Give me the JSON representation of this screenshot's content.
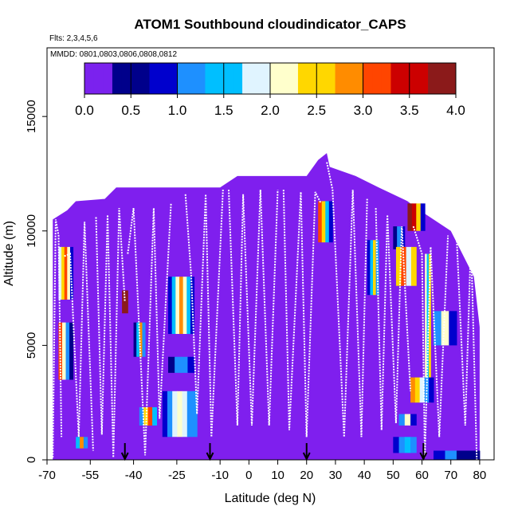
{
  "chart_data": {
    "type": "heatmap",
    "title": "ATOM1 Southbound cloudindicator_CAPS",
    "subtitle_flights": "Flts: 2,3,4,5,6",
    "subtitle_dates": "MMDD: 0801,0803,0806,0808,0812",
    "xlabel": "Latitude (deg N)",
    "ylabel": "Altitude (m)",
    "xlim": [
      -70,
      85
    ],
    "ylim": [
      0,
      18000
    ],
    "x_ticks": [
      -70,
      -55,
      -40,
      -25,
      -10,
      0,
      10,
      20,
      30,
      40,
      50,
      60,
      70,
      80
    ],
    "x_tick_labels": [
      "-70",
      "-55",
      "-40",
      "-25",
      "-10",
      "0",
      "10",
      "20",
      "30",
      "40",
      "50",
      "60",
      "70",
      "80"
    ],
    "y_ticks": [
      0,
      5000,
      10000,
      15000
    ],
    "y_tick_labels": [
      "0",
      "5000",
      "10000",
      "15000"
    ],
    "colorbar": {
      "min": 0,
      "max": 4,
      "ticks": [
        0,
        0.5,
        1,
        1.5,
        2,
        2.5,
        3,
        3.5,
        4
      ],
      "tick_labels": [
        "0.0",
        "0.5",
        "1.0",
        "1.5",
        "2.0",
        "2.5",
        "3.0",
        "3.5",
        "4.0"
      ],
      "placement": "top-inside",
      "colors": [
        "#7b22ee",
        "#00008b",
        "#0000cd",
        "#1e90ff",
        "#00bfff",
        "#e0f4ff",
        "#ffffcc",
        "#ffd700",
        "#ff8c00",
        "#ff4500",
        "#cc0000",
        "#8b1a1a"
      ]
    },
    "background_value": 0,
    "background_color": "#7f1fee",
    "coverage_envelope": [
      {
        "x": -68,
        "top": 10500
      },
      {
        "x": -63,
        "top": 10900
      },
      {
        "x": -60,
        "top": 11300
      },
      {
        "x": -50,
        "top": 11400
      },
      {
        "x": -46,
        "top": 11900
      },
      {
        "x": -10,
        "top": 11900
      },
      {
        "x": -4,
        "top": 12400
      },
      {
        "x": 20,
        "top": 12400
      },
      {
        "x": 24,
        "top": 13100
      },
      {
        "x": 27,
        "top": 13400
      },
      {
        "x": 28,
        "top": 12800
      },
      {
        "x": 37,
        "top": 12400
      },
      {
        "x": 45,
        "top": 11900
      },
      {
        "x": 55,
        "top": 11300
      },
      {
        "x": 58,
        "top": 11000
      },
      {
        "x": 64,
        "top": 10500
      },
      {
        "x": 70,
        "top": 10000
      },
      {
        "x": 74,
        "top": 9000
      },
      {
        "x": 78,
        "top": 8000
      },
      {
        "x": 80,
        "top": 5800
      }
    ],
    "cloud_patches": [
      {
        "x0": -66,
        "x1": -61,
        "y0": 7000,
        "y1": 9300,
        "values": [
          1.8,
          2.5,
          3.0,
          2.0,
          0.8
        ]
      },
      {
        "x0": -66,
        "x1": -61,
        "y0": 3500,
        "y1": 6000,
        "values": [
          3.0,
          2.2,
          1.2,
          0.6
        ]
      },
      {
        "x0": -60,
        "x1": -56,
        "y0": 500,
        "y1": 1000,
        "values": [
          1.5,
          2.8,
          1.0
        ]
      },
      {
        "x0": -44,
        "x1": -42,
        "y0": 6400,
        "y1": 7400,
        "values": [
          3.8
        ]
      },
      {
        "x0": -40,
        "x1": -36,
        "y0": 4500,
        "y1": 6000,
        "values": [
          0.6,
          1.5,
          2.7,
          1.1
        ]
      },
      {
        "x0": -38,
        "x1": -32,
        "y0": 1500,
        "y1": 2300,
        "values": [
          1.0,
          2.4,
          3.2,
          1.5
        ]
      },
      {
        "x0": -28,
        "x1": -19,
        "y0": 5500,
        "y1": 8000,
        "values": [
          0.7,
          1.6,
          2.2,
          2.8,
          2.0,
          1.4,
          0.9
        ]
      },
      {
        "x0": -28,
        "x1": -19,
        "y0": 3800,
        "y1": 4500,
        "values": [
          0.6,
          1.0,
          1.3,
          0.8
        ]
      },
      {
        "x0": -30,
        "x1": -18,
        "y0": 1000,
        "y1": 3000,
        "values": [
          0.8,
          1.2,
          1.7,
          2.1,
          1.7,
          1.3,
          1.0
        ]
      },
      {
        "x0": 24,
        "x1": 29,
        "y0": 9500,
        "y1": 11300,
        "values": [
          3.2,
          2.6,
          1.4,
          0.7
        ]
      },
      {
        "x0": 41,
        "x1": 45,
        "y0": 7200,
        "y1": 9600,
        "values": [
          0.7,
          1.4,
          2.6,
          1.2
        ]
      },
      {
        "x0": 50,
        "x1": 54,
        "y0": 9200,
        "y1": 10200,
        "values": [
          0.6,
          1.1,
          0.7
        ]
      },
      {
        "x0": 51,
        "x1": 58,
        "y0": 7600,
        "y1": 9300,
        "values": [
          2.6,
          3.0,
          1.8,
          2.4
        ]
      },
      {
        "x0": 55,
        "x1": 61,
        "y0": 10000,
        "y1": 11200,
        "values": [
          3.9,
          3.5,
          2.4,
          0.9
        ]
      },
      {
        "x0": 61,
        "x1": 63,
        "y0": 2500,
        "y1": 9000,
        "values": [
          2.2,
          1.6,
          2.5
        ]
      },
      {
        "x0": 56,
        "x1": 64,
        "y0": 2500,
        "y1": 3600,
        "values": [
          2.8,
          2.4,
          1.8,
          1.2,
          0.8
        ]
      },
      {
        "x0": 50,
        "x1": 58,
        "y0": 300,
        "y1": 1000,
        "values": [
          0.8,
          1.2,
          1.4,
          1.0
        ]
      },
      {
        "x0": 52,
        "x1": 58,
        "y0": 1500,
        "y1": 2000,
        "values": [
          1.3,
          2.2,
          0.9
        ]
      },
      {
        "x0": 64,
        "x1": 72,
        "y0": 5000,
        "y1": 6500,
        "values": [
          1.1,
          2.1,
          0.8
        ]
      },
      {
        "x0": 64,
        "x1": 80,
        "y0": 0,
        "y1": 400,
        "values": [
          0.9,
          1.1,
          0.6,
          0.4
        ]
      }
    ],
    "flight_tracks": [
      [
        [
          -68,
          100
        ],
        [
          -67,
          10500
        ],
        [
          -66,
          9800
        ],
        [
          -65,
          1000
        ]
      ],
      [
        [
          -64,
          8900
        ],
        [
          -62,
          9000
        ],
        [
          -59,
          1000
        ],
        [
          -57,
          10400
        ],
        [
          -54,
          400
        ]
      ],
      [
        [
          -53,
          10600
        ],
        [
          -51,
          1100
        ],
        [
          -49,
          10700
        ],
        [
          -47,
          100
        ],
        [
          -45,
          11000
        ],
        [
          -43,
          6900
        ]
      ],
      [
        [
          -42,
          9000
        ],
        [
          -40,
          11000
        ],
        [
          -36,
          200
        ],
        [
          -33,
          11000
        ],
        [
          -31,
          1800
        ],
        [
          -27,
          11200
        ]
      ],
      [
        [
          -22,
          11600
        ],
        [
          -20,
          8000
        ],
        [
          -18,
          2000
        ],
        [
          -15,
          11600
        ],
        [
          -13,
          1000
        ],
        [
          -9,
          11800
        ]
      ],
      [
        [
          -7,
          11800
        ],
        [
          -4,
          1500
        ],
        [
          -2,
          11600
        ],
        [
          1,
          1500
        ],
        [
          4,
          11800
        ],
        [
          7,
          1500
        ],
        [
          10,
          11800
        ]
      ],
      [
        [
          12,
          11800
        ],
        [
          14,
          1300
        ],
        [
          18,
          11700
        ],
        [
          20,
          1000
        ],
        [
          23,
          11700
        ],
        [
          25,
          11200
        ]
      ],
      [
        [
          27,
          13000
        ],
        [
          29,
          11800
        ],
        [
          33,
          1000
        ],
        [
          36,
          11800
        ],
        [
          39,
          1000
        ],
        [
          41,
          11400
        ]
      ],
      [
        [
          44,
          11000
        ],
        [
          46,
          1300
        ],
        [
          48,
          10700
        ],
        [
          51,
          1600
        ],
        [
          53,
          10200
        ],
        [
          56,
          3000
        ]
      ],
      [
        [
          57,
          10200
        ],
        [
          60,
          9000
        ],
        [
          61,
          100
        ],
        [
          63,
          9300
        ],
        [
          66,
          1000
        ],
        [
          69,
          9800
        ]
      ],
      [
        [
          72,
          9800
        ],
        [
          75,
          1500
        ],
        [
          77,
          9600
        ],
        [
          79,
          0
        ]
      ]
    ],
    "sonde_markers_lat": [
      -43,
      -13.5,
      20,
      60.5
    ]
  }
}
